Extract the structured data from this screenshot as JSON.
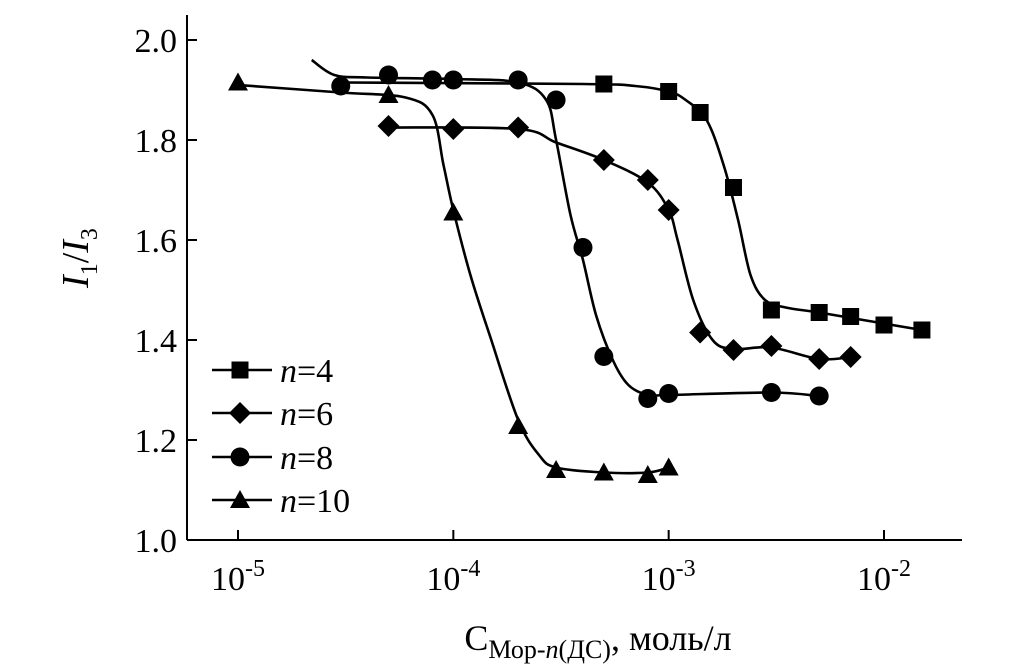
{
  "chart_data": {
    "type": "line",
    "x_scale": "log",
    "xlim": [
      5e-06,
      0.03
    ],
    "ylim": [
      1.0,
      2.0
    ],
    "x_ticks": [
      {
        "value": 1e-05,
        "base": "10",
        "exp": "-5"
      },
      {
        "value": 0.0001,
        "base": "10",
        "exp": "-4"
      },
      {
        "value": 0.001,
        "base": "10",
        "exp": "-3"
      },
      {
        "value": 0.01,
        "base": "10",
        "exp": "-2"
      }
    ],
    "y_ticks": [
      "1.0",
      "1.2",
      "1.4",
      "1.6",
      "1.8",
      "2.0"
    ],
    "ylabel": {
      "i1": "I",
      "sub1": "1",
      "slash": "/",
      "i3": "I",
      "sub3": "3"
    },
    "xlabel": {
      "c": "C",
      "sub": "Мор-",
      "sub_n": "n",
      "sub_rest": "(ДС)",
      "units": ", моль/л"
    },
    "legend_position": "bottom-left",
    "series": [
      {
        "name": "n=4",
        "label_n": "n",
        "label_val": "=4",
        "marker": "square",
        "points": [
          [
            0.0005,
            1.912
          ],
          [
            0.001,
            1.897
          ],
          [
            0.0014,
            1.855
          ],
          [
            0.002,
            1.705
          ],
          [
            0.003,
            1.46
          ],
          [
            0.005,
            1.455
          ],
          [
            0.007,
            1.447
          ],
          [
            0.01,
            1.43
          ],
          [
            0.015,
            1.42
          ]
        ],
        "curve": [
          [
            3e-05,
            1.915
          ],
          [
            0.0004,
            1.912
          ],
          [
            0.0007,
            1.908
          ],
          [
            0.001,
            1.897
          ],
          [
            0.0012,
            1.88
          ],
          [
            0.0015,
            1.84
          ],
          [
            0.0018,
            1.75
          ],
          [
            0.0021,
            1.64
          ],
          [
            0.0024,
            1.53
          ],
          [
            0.0028,
            1.48
          ],
          [
            0.0035,
            1.465
          ],
          [
            0.005,
            1.455
          ],
          [
            0.008,
            1.44
          ],
          [
            0.015,
            1.42
          ]
        ]
      },
      {
        "name": "n=6",
        "label_n": "n",
        "label_val": "=6",
        "marker": "diamond",
        "points": [
          [
            5e-05,
            1.828
          ],
          [
            0.0001,
            1.822
          ],
          [
            0.0002,
            1.825
          ],
          [
            0.0005,
            1.76
          ],
          [
            0.0008,
            1.72
          ],
          [
            0.001,
            1.66
          ],
          [
            0.0014,
            1.415
          ],
          [
            0.002,
            1.38
          ],
          [
            0.003,
            1.388
          ],
          [
            0.005,
            1.362
          ],
          [
            0.007,
            1.366
          ]
        ],
        "curve": [
          [
            5e-05,
            1.825
          ],
          [
            0.0002,
            1.822
          ],
          [
            0.0003,
            1.795
          ],
          [
            0.0005,
            1.76
          ],
          [
            0.0008,
            1.715
          ],
          [
            0.001,
            1.66
          ],
          [
            0.0011,
            1.6
          ],
          [
            0.0013,
            1.48
          ],
          [
            0.0016,
            1.4
          ],
          [
            0.002,
            1.382
          ],
          [
            0.003,
            1.385
          ],
          [
            0.005,
            1.362
          ],
          [
            0.007,
            1.366
          ]
        ]
      },
      {
        "name": "n=8",
        "label_n": "n",
        "label_val": "=8",
        "marker": "circle",
        "points": [
          [
            3e-05,
            1.908
          ],
          [
            5e-05,
            1.93
          ],
          [
            8e-05,
            1.92
          ],
          [
            0.0001,
            1.92
          ],
          [
            0.0002,
            1.92
          ],
          [
            0.0003,
            1.88
          ],
          [
            0.0004,
            1.585
          ],
          [
            0.0005,
            1.367
          ],
          [
            0.0008,
            1.283
          ],
          [
            0.001,
            1.293
          ],
          [
            0.003,
            1.295
          ],
          [
            0.005,
            1.288
          ]
        ],
        "curve": [
          [
            2.2e-05,
            1.96
          ],
          [
            2.8e-05,
            1.93
          ],
          [
            4e-05,
            1.925
          ],
          [
            0.0001,
            1.922
          ],
          [
            0.0002,
            1.915
          ],
          [
            0.00027,
            1.88
          ],
          [
            0.0003,
            1.8
          ],
          [
            0.00035,
            1.65
          ],
          [
            0.0004,
            1.56
          ],
          [
            0.00046,
            1.45
          ],
          [
            0.00055,
            1.36
          ],
          [
            0.00065,
            1.31
          ],
          [
            0.0008,
            1.29
          ],
          [
            0.001,
            1.29
          ],
          [
            0.003,
            1.295
          ],
          [
            0.005,
            1.288
          ]
        ]
      },
      {
        "name": "n=10",
        "label_n": "n",
        "label_val": "=10",
        "marker": "triangle",
        "points": [
          [
            1e-05,
            1.915
          ],
          [
            5e-05,
            1.89
          ],
          [
            0.0001,
            1.655
          ],
          [
            0.0002,
            1.228
          ],
          [
            0.0003,
            1.14
          ],
          [
            0.0005,
            1.135
          ],
          [
            0.0008,
            1.13
          ],
          [
            0.001,
            1.145
          ]
        ],
        "curve": [
          [
            1e-05,
            1.91
          ],
          [
            3e-05,
            1.895
          ],
          [
            6e-05,
            1.885
          ],
          [
            8e-05,
            1.85
          ],
          [
            9e-05,
            1.75
          ],
          [
            0.0001,
            1.66
          ],
          [
            0.00012,
            1.53
          ],
          [
            0.00015,
            1.4
          ],
          [
            0.0002,
            1.24
          ],
          [
            0.00025,
            1.17
          ],
          [
            0.0003,
            1.145
          ],
          [
            0.0005,
            1.135
          ],
          [
            0.0008,
            1.135
          ],
          [
            0.001,
            1.145
          ]
        ]
      }
    ]
  }
}
